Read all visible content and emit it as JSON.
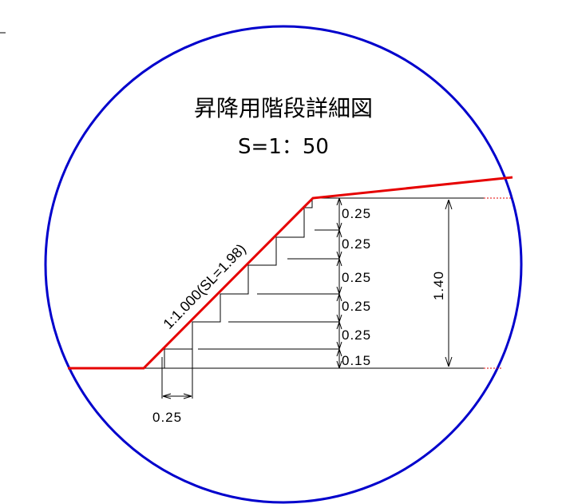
{
  "title": "昇降用階段詳細図",
  "scale": "S=1：50",
  "slope_label": "1:1.000(SL=1.98)",
  "step_heights": [
    "0.25",
    "0.25",
    "0.25",
    "0.25",
    "0.25",
    "0.15"
  ],
  "total_height": "1.40",
  "tread_width": "0.25",
  "colors": {
    "circle": "#0000cc",
    "ground_line": "#e60000",
    "dimension": "#000000"
  }
}
